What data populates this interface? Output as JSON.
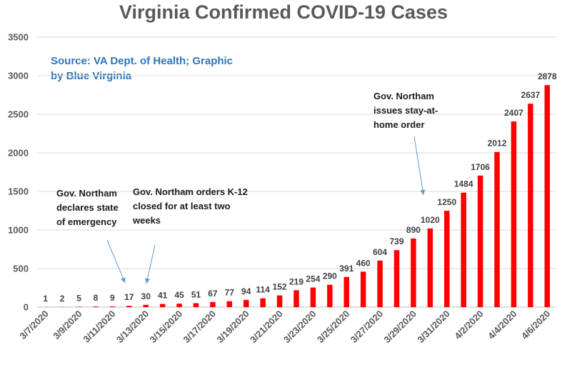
{
  "chart_data": {
    "type": "bar",
    "title": "Virginia Confirmed COVID-19 Cases",
    "source_lines": [
      "Source: VA Dept. of Health; Graphic",
      "by Blue Virginia"
    ],
    "xlabel": "",
    "ylabel": "",
    "ylim": [
      0,
      3500
    ],
    "yticks": [
      0,
      500,
      1000,
      1500,
      2000,
      2500,
      3000,
      3500
    ],
    "grid": true,
    "bar_color": "#ff0000",
    "categories": [
      "3/7/2020",
      "3/8/2020",
      "3/9/2020",
      "3/10/2020",
      "3/11/2020",
      "3/12/2020",
      "3/13/2020",
      "3/14/2020",
      "3/15/2020",
      "3/16/2020",
      "3/17/2020",
      "3/18/2020",
      "3/19/2020",
      "3/20/2020",
      "3/21/2020",
      "3/22/2020",
      "3/23/2020",
      "3/24/2020",
      "3/25/2020",
      "3/26/2020",
      "3/27/2020",
      "3/28/2020",
      "3/29/2020",
      "3/30/2020",
      "3/31/2020",
      "4/1/2020",
      "4/2/2020",
      "4/3/2020",
      "4/4/2020",
      "4/5/2020",
      "4/6/2020"
    ],
    "values": [
      1,
      2,
      5,
      8,
      9,
      17,
      30,
      41,
      45,
      51,
      67,
      77,
      94,
      114,
      152,
      219,
      254,
      290,
      391,
      460,
      604,
      739,
      890,
      1020,
      1250,
      1484,
      1706,
      2012,
      2407,
      2637,
      2878
    ],
    "x_tick_labels_shown": [
      "3/7/2020",
      "3/9/2020",
      "3/11/2020",
      "3/13/2020",
      "3/15/2020",
      "3/17/2020",
      "3/19/2020",
      "3/21/2020",
      "3/23/2020",
      "3/25/2020",
      "3/27/2020",
      "3/29/2020",
      "3/31/2020",
      "4/2/2020",
      "4/4/2020",
      "4/6/2020"
    ],
    "annotations": [
      {
        "lines": [
          "Gov. Northam",
          "declares state",
          "of emergency"
        ],
        "target": "3/12/2020"
      },
      {
        "lines": [
          "Gov. Northam orders K-12",
          "closed  for at least two",
          "weeks"
        ],
        "target": "3/13/2020"
      },
      {
        "lines": [
          "Gov. Northam",
          "issues stay-at-",
          "home order"
        ],
        "target": "3/30/2020"
      }
    ]
  }
}
